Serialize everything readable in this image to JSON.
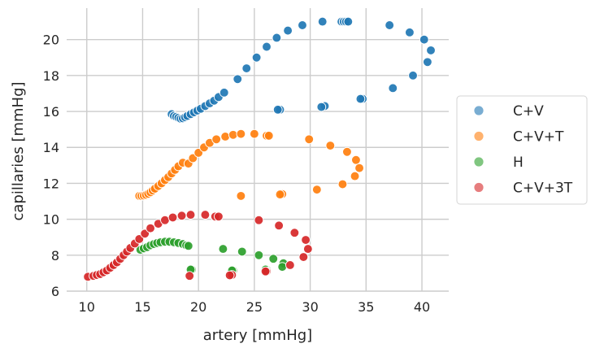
{
  "chart_data": {
    "type": "scatter",
    "xlabel": "artery [mmHg]",
    "ylabel": "capillaries [mmHg]",
    "xlim": [
      8.2,
      42.4
    ],
    "ylim": [
      6.0,
      21.75
    ],
    "xticks": [
      10,
      15,
      20,
      25,
      30,
      35,
      40
    ],
    "yticks": [
      6,
      8,
      10,
      12,
      14,
      16,
      18,
      20
    ],
    "grid": true,
    "legend_position": "right",
    "series": [
      {
        "name": "C+V",
        "color": "#1f77b4",
        "points": [
          [
            17.6,
            15.85
          ],
          [
            17.8,
            15.75
          ],
          [
            18.0,
            15.7
          ],
          [
            18.2,
            15.65
          ],
          [
            18.4,
            15.6
          ],
          [
            18.6,
            15.62
          ],
          [
            18.8,
            15.68
          ],
          [
            19.0,
            15.75
          ],
          [
            19.3,
            15.85
          ],
          [
            19.6,
            15.95
          ],
          [
            19.9,
            16.05
          ],
          [
            20.2,
            16.15
          ],
          [
            20.6,
            16.3
          ],
          [
            21.0,
            16.45
          ],
          [
            21.4,
            16.6
          ],
          [
            21.8,
            16.8
          ],
          [
            22.3,
            17.05
          ],
          [
            23.5,
            17.8
          ],
          [
            24.3,
            18.4
          ],
          [
            25.2,
            19.0
          ],
          [
            26.1,
            19.6
          ],
          [
            27.0,
            20.1
          ],
          [
            28.0,
            20.5
          ],
          [
            29.3,
            20.8
          ],
          [
            31.1,
            21.0
          ],
          [
            32.8,
            21.0
          ],
          [
            33.0,
            21.0
          ],
          [
            33.2,
            21.0
          ],
          [
            33.4,
            21.0
          ],
          [
            37.1,
            20.8
          ],
          [
            38.9,
            20.4
          ],
          [
            40.2,
            20.0
          ],
          [
            40.8,
            19.4
          ],
          [
            40.5,
            18.75
          ],
          [
            39.2,
            18.0
          ],
          [
            37.4,
            17.3
          ],
          [
            34.7,
            16.7
          ],
          [
            34.5,
            16.7
          ],
          [
            31.3,
            16.3
          ],
          [
            31.0,
            16.25
          ],
          [
            27.3,
            16.1
          ],
          [
            27.1,
            16.1
          ]
        ]
      },
      {
        "name": "C+V+T",
        "color": "#ff7f0e",
        "points": [
          [
            14.7,
            11.3
          ],
          [
            14.9,
            11.3
          ],
          [
            15.1,
            11.32
          ],
          [
            15.3,
            11.36
          ],
          [
            15.5,
            11.42
          ],
          [
            15.7,
            11.5
          ],
          [
            15.9,
            11.6
          ],
          [
            16.1,
            11.7
          ],
          [
            16.4,
            11.85
          ],
          [
            16.7,
            12.0
          ],
          [
            17.0,
            12.18
          ],
          [
            17.3,
            12.35
          ],
          [
            17.6,
            12.55
          ],
          [
            17.9,
            12.75
          ],
          [
            18.2,
            12.95
          ],
          [
            18.6,
            13.15
          ],
          [
            19.1,
            13.1
          ],
          [
            19.5,
            13.4
          ],
          [
            20.0,
            13.7
          ],
          [
            20.5,
            14.0
          ],
          [
            21.0,
            14.25
          ],
          [
            21.6,
            14.45
          ],
          [
            22.4,
            14.6
          ],
          [
            23.1,
            14.7
          ],
          [
            23.8,
            14.75
          ],
          [
            25.0,
            14.75
          ],
          [
            26.1,
            14.65
          ],
          [
            26.3,
            14.65
          ],
          [
            29.9,
            14.45
          ],
          [
            31.8,
            14.1
          ],
          [
            33.3,
            13.75
          ],
          [
            34.1,
            13.3
          ],
          [
            34.4,
            12.85
          ],
          [
            34.0,
            12.4
          ],
          [
            32.9,
            11.95
          ],
          [
            30.6,
            11.65
          ],
          [
            27.5,
            11.4
          ],
          [
            27.3,
            11.38
          ],
          [
            23.8,
            11.3
          ]
        ]
      },
      {
        "name": "H",
        "color": "#2ca02c",
        "points": [
          [
            14.8,
            8.3
          ],
          [
            15.1,
            8.38
          ],
          [
            15.4,
            8.45
          ],
          [
            15.7,
            8.55
          ],
          [
            16.0,
            8.62
          ],
          [
            16.3,
            8.68
          ],
          [
            16.6,
            8.72
          ],
          [
            17.0,
            8.75
          ],
          [
            17.4,
            8.75
          ],
          [
            17.8,
            8.72
          ],
          [
            18.2,
            8.68
          ],
          [
            18.6,
            8.62
          ],
          [
            18.9,
            8.55
          ],
          [
            19.1,
            8.52
          ],
          [
            22.2,
            8.35
          ],
          [
            23.9,
            8.2
          ],
          [
            25.4,
            8.0
          ],
          [
            26.7,
            7.8
          ],
          [
            27.6,
            7.55
          ],
          [
            27.5,
            7.35
          ],
          [
            26.1,
            7.2
          ],
          [
            26.0,
            7.2
          ],
          [
            23.1,
            7.15
          ],
          [
            23.0,
            7.15
          ],
          [
            19.4,
            7.2
          ],
          [
            19.3,
            7.2
          ]
        ]
      },
      {
        "name": "C+V+3T",
        "color": "#d62728",
        "points": [
          [
            10.1,
            6.8
          ],
          [
            10.6,
            6.85
          ],
          [
            10.9,
            6.9
          ],
          [
            11.2,
            6.95
          ],
          [
            11.5,
            7.05
          ],
          [
            11.8,
            7.15
          ],
          [
            12.1,
            7.3
          ],
          [
            12.4,
            7.45
          ],
          [
            12.7,
            7.6
          ],
          [
            13.0,
            7.8
          ],
          [
            13.3,
            8.0
          ],
          [
            13.6,
            8.2
          ],
          [
            13.9,
            8.4
          ],
          [
            14.3,
            8.65
          ],
          [
            14.7,
            8.9
          ],
          [
            15.2,
            9.2
          ],
          [
            15.7,
            9.5
          ],
          [
            16.4,
            9.75
          ],
          [
            17.0,
            9.95
          ],
          [
            17.7,
            10.1
          ],
          [
            18.5,
            10.2
          ],
          [
            19.3,
            10.25
          ],
          [
            20.6,
            10.25
          ],
          [
            21.5,
            10.15
          ],
          [
            21.8,
            10.15
          ],
          [
            25.4,
            9.95
          ],
          [
            27.2,
            9.65
          ],
          [
            28.6,
            9.25
          ],
          [
            29.6,
            8.85
          ],
          [
            29.8,
            8.35
          ],
          [
            29.4,
            7.9
          ],
          [
            28.2,
            7.45
          ],
          [
            26.1,
            7.1
          ],
          [
            26.0,
            7.1
          ],
          [
            23.0,
            6.9
          ],
          [
            22.8,
            6.88
          ],
          [
            19.2,
            6.85
          ]
        ]
      }
    ]
  }
}
